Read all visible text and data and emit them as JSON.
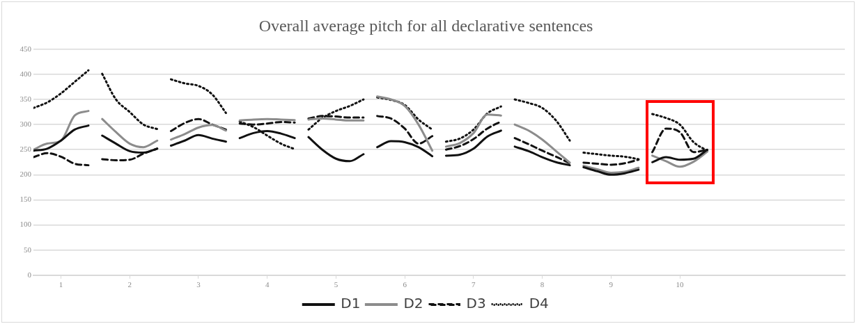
{
  "chart_data": {
    "type": "line",
    "title": "Overall average pitch for all declarative sentences",
    "x": [
      0.6,
      0.8,
      1,
      1.2,
      1.4,
      1.5,
      1.6,
      1.8,
      2,
      2.2,
      2.4,
      2.5,
      2.6,
      2.8,
      3,
      3.2,
      3.4,
      3.5,
      3.6,
      3.8,
      4,
      4.2,
      4.4,
      4.5,
      4.6,
      4.8,
      5,
      5.2,
      5.4,
      5.5,
      5.6,
      5.8,
      6,
      6.2,
      6.4,
      6.5,
      6.6,
      6.8,
      7,
      7.2,
      7.4,
      7.5,
      7.6,
      7.8,
      8,
      8.2,
      8.4,
      8.5,
      8.6,
      8.8,
      9,
      9.2,
      9.4,
      9.5,
      9.6,
      9.8,
      10,
      10.2,
      10.4
    ],
    "series": [
      {
        "name": "D1",
        "color": "#111111",
        "line_style": "solid",
        "values": [
          248,
          252,
          268,
          290,
          298,
          null,
          278,
          262,
          247,
          244,
          252,
          null,
          258,
          268,
          279,
          272,
          266,
          null,
          273,
          283,
          287,
          282,
          273,
          null,
          275,
          250,
          232,
          227,
          241,
          null,
          255,
          267,
          265,
          255,
          237,
          null,
          238,
          240,
          252,
          276,
          288,
          null,
          256,
          247,
          235,
          225,
          219,
          null,
          215,
          207,
          200,
          203,
          210,
          null,
          225,
          235,
          230,
          232,
          250
        ]
      },
      {
        "name": "D2",
        "color": "#8c8c8c",
        "line_style": "solid",
        "values": [
          250,
          262,
          268,
          318,
          327,
          null,
          311,
          285,
          262,
          255,
          268,
          null,
          270,
          281,
          294,
          299,
          288,
          null,
          308,
          310,
          311,
          310,
          309,
          null,
          310,
          312,
          310,
          308,
          308,
          null,
          356,
          350,
          337,
          300,
          248,
          null,
          256,
          263,
          283,
          320,
          318,
          null,
          300,
          288,
          270,
          247,
          224,
          null,
          218,
          211,
          204,
          206,
          214,
          null,
          238,
          227,
          216,
          226,
          246
        ]
      },
      {
        "name": "D3",
        "color": "#111111",
        "line_style": "dashed",
        "values": [
          235,
          243,
          236,
          222,
          219,
          null,
          231,
          229,
          230,
          242,
          252,
          null,
          287,
          303,
          311,
          300,
          290,
          null,
          302,
          300,
          302,
          305,
          304,
          null,
          312,
          317,
          316,
          314,
          314,
          null,
          317,
          312,
          292,
          262,
          277,
          null,
          250,
          257,
          271,
          292,
          306,
          null,
          273,
          261,
          248,
          236,
          223,
          null,
          224,
          222,
          220,
          223,
          230,
          null,
          245,
          292,
          285,
          245,
          250
        ]
      },
      {
        "name": "D4",
        "color": "#111111",
        "line_style": "dotted",
        "values": [
          333,
          344,
          362,
          385,
          408,
          null,
          401,
          350,
          325,
          300,
          291,
          null,
          390,
          382,
          377,
          360,
          323,
          null,
          306,
          295,
          278,
          262,
          251,
          null,
          290,
          313,
          327,
          337,
          350,
          null,
          354,
          349,
          339,
          310,
          290,
          null,
          266,
          272,
          290,
          322,
          336,
          null,
          350,
          343,
          333,
          308,
          268,
          null,
          244,
          241,
          238,
          236,
          231,
          null,
          321,
          313,
          300,
          265,
          248
        ]
      }
    ],
    "xlim": [
      0.6,
      12.4
    ],
    "xticks": [
      1,
      2,
      3,
      4,
      5,
      6,
      7,
      8,
      9,
      10
    ],
    "ylim": [
      0,
      450
    ],
    "yticks": [
      0,
      50,
      100,
      150,
      200,
      250,
      300,
      350,
      400,
      450
    ],
    "grid": "y",
    "legend": "bottom",
    "marker": "none"
  }
}
